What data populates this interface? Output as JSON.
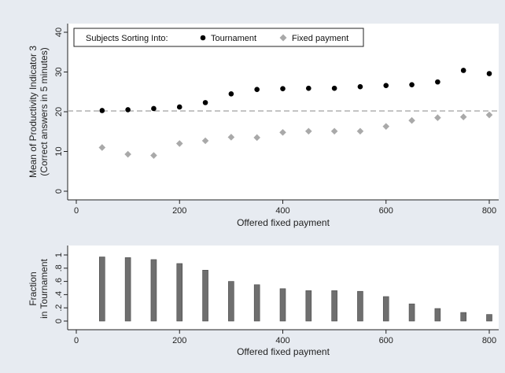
{
  "colors": {
    "outer_background": "#e7ebf1",
    "plot_background": "#ffffff",
    "tournament_marker": "#000000",
    "fixed_marker": "#a9a9a9",
    "bar_fill": "#6f6f6f",
    "reference_line": "#a0a0a0",
    "axis": "#222222"
  },
  "chart_data": [
    {
      "type": "scatter",
      "xlabel": "Offered fixed payment",
      "ylabel_line1": "Mean of Productivity Indicator 3",
      "ylabel_line2": "(Correct answers in 5 minutes)",
      "xlim": [
        0,
        800
      ],
      "ylim": [
        0,
        40
      ],
      "xticks": [
        "0",
        "200",
        "400",
        "600",
        "800"
      ],
      "yticks": [
        "0",
        "10",
        "20",
        "30",
        "40"
      ],
      "reference_line_y": 20.2,
      "grid": false,
      "legend": {
        "title": "Subjects Sorting Into:",
        "position": "top",
        "entries": [
          "Tournament",
          "Fixed payment"
        ]
      },
      "x": [
        50,
        100,
        150,
        200,
        250,
        300,
        350,
        400,
        450,
        500,
        550,
        600,
        650,
        700,
        750,
        800
      ],
      "series": [
        {
          "name": "Tournament",
          "marker": "circle",
          "values": [
            20.3,
            20.5,
            20.8,
            21.2,
            22.3,
            24.5,
            25.6,
            25.8,
            25.9,
            25.9,
            26.3,
            26.6,
            26.8,
            27.5,
            30.4,
            29.6
          ]
        },
        {
          "name": "Fixed payment",
          "marker": "diamond",
          "values": [
            11.0,
            9.3,
            9.0,
            12.0,
            12.7,
            13.6,
            13.5,
            14.8,
            15.1,
            15.1,
            15.1,
            16.3,
            17.8,
            18.5,
            18.7,
            19.2
          ]
        }
      ]
    },
    {
      "type": "bar",
      "xlabel": "Offered fixed payment",
      "ylabel_line1": "Fraction",
      "ylabel_line2": "in Tournament",
      "xlim": [
        0,
        800
      ],
      "ylim": [
        0,
        1
      ],
      "xticks": [
        "0",
        "200",
        "400",
        "600",
        "800"
      ],
      "yticks": [
        "0",
        ".2",
        ".4",
        ".6",
        ".8",
        "1"
      ],
      "grid": false,
      "x": [
        50,
        100,
        150,
        200,
        250,
        300,
        350,
        400,
        450,
        500,
        550,
        600,
        650,
        700,
        750,
        800
      ],
      "values": [
        0.97,
        0.96,
        0.93,
        0.87,
        0.77,
        0.6,
        0.55,
        0.49,
        0.46,
        0.46,
        0.45,
        0.37,
        0.26,
        0.19,
        0.13,
        0.1
      ]
    }
  ]
}
